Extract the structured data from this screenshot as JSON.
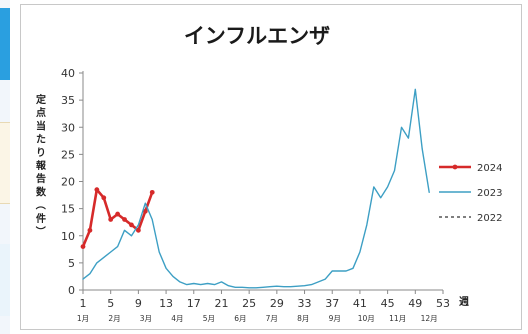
{
  "chart_data": {
    "type": "line",
    "title": "インフルエンザ",
    "ylabel": "定点当たり報告数（件）",
    "xlabel": "週",
    "ylim": [
      0,
      40
    ],
    "xlim": [
      1,
      53
    ],
    "yticks": [
      0,
      5,
      10,
      15,
      20,
      25,
      30,
      35,
      40
    ],
    "xticks": [
      1,
      5,
      9,
      13,
      17,
      21,
      25,
      29,
      33,
      37,
      41,
      45,
      49,
      53
    ],
    "month_labels": [
      "1月",
      "2月",
      "3月",
      "4月",
      "5月",
      "6月",
      "7月",
      "8月",
      "9月",
      "10月",
      "11月",
      "12月"
    ],
    "grid": false,
    "legend_position": "right",
    "series": [
      {
        "name": "2024",
        "color": "#d62a2a",
        "style": "solid-markers",
        "x": [
          1,
          2,
          3,
          4,
          5,
          6,
          7,
          8,
          9,
          10,
          11
        ],
        "y": [
          8,
          11,
          18.5,
          17,
          13,
          14,
          13,
          12,
          11,
          14.5,
          18
        ]
      },
      {
        "name": "2023",
        "color": "#3d9fc4",
        "style": "solid",
        "x": [
          1,
          2,
          3,
          4,
          5,
          6,
          7,
          8,
          9,
          10,
          11,
          12,
          13,
          14,
          15,
          16,
          17,
          18,
          19,
          20,
          21,
          22,
          23,
          24,
          25,
          26,
          27,
          28,
          29,
          30,
          31,
          32,
          33,
          34,
          35,
          36,
          37,
          38,
          39,
          40,
          41,
          42,
          43,
          44,
          45,
          46,
          47,
          48,
          49,
          50,
          51
        ],
        "y": [
          2,
          3,
          5,
          6,
          7,
          8,
          11,
          10,
          12,
          16,
          13,
          7,
          4,
          2.5,
          1.5,
          1,
          1.2,
          1,
          1.2,
          1,
          1.5,
          0.8,
          0.5,
          0.5,
          0.4,
          0.4,
          0.5,
          0.6,
          0.7,
          0.6,
          0.6,
          0.7,
          0.8,
          1,
          1.5,
          2,
          3.5,
          3.5,
          3.5,
          4,
          7,
          12,
          19,
          17,
          19,
          22,
          30,
          28,
          37,
          26,
          18
        ]
      },
      {
        "name": "2022",
        "color": "#555555",
        "style": "dashed",
        "x": [],
        "y": []
      }
    ]
  }
}
